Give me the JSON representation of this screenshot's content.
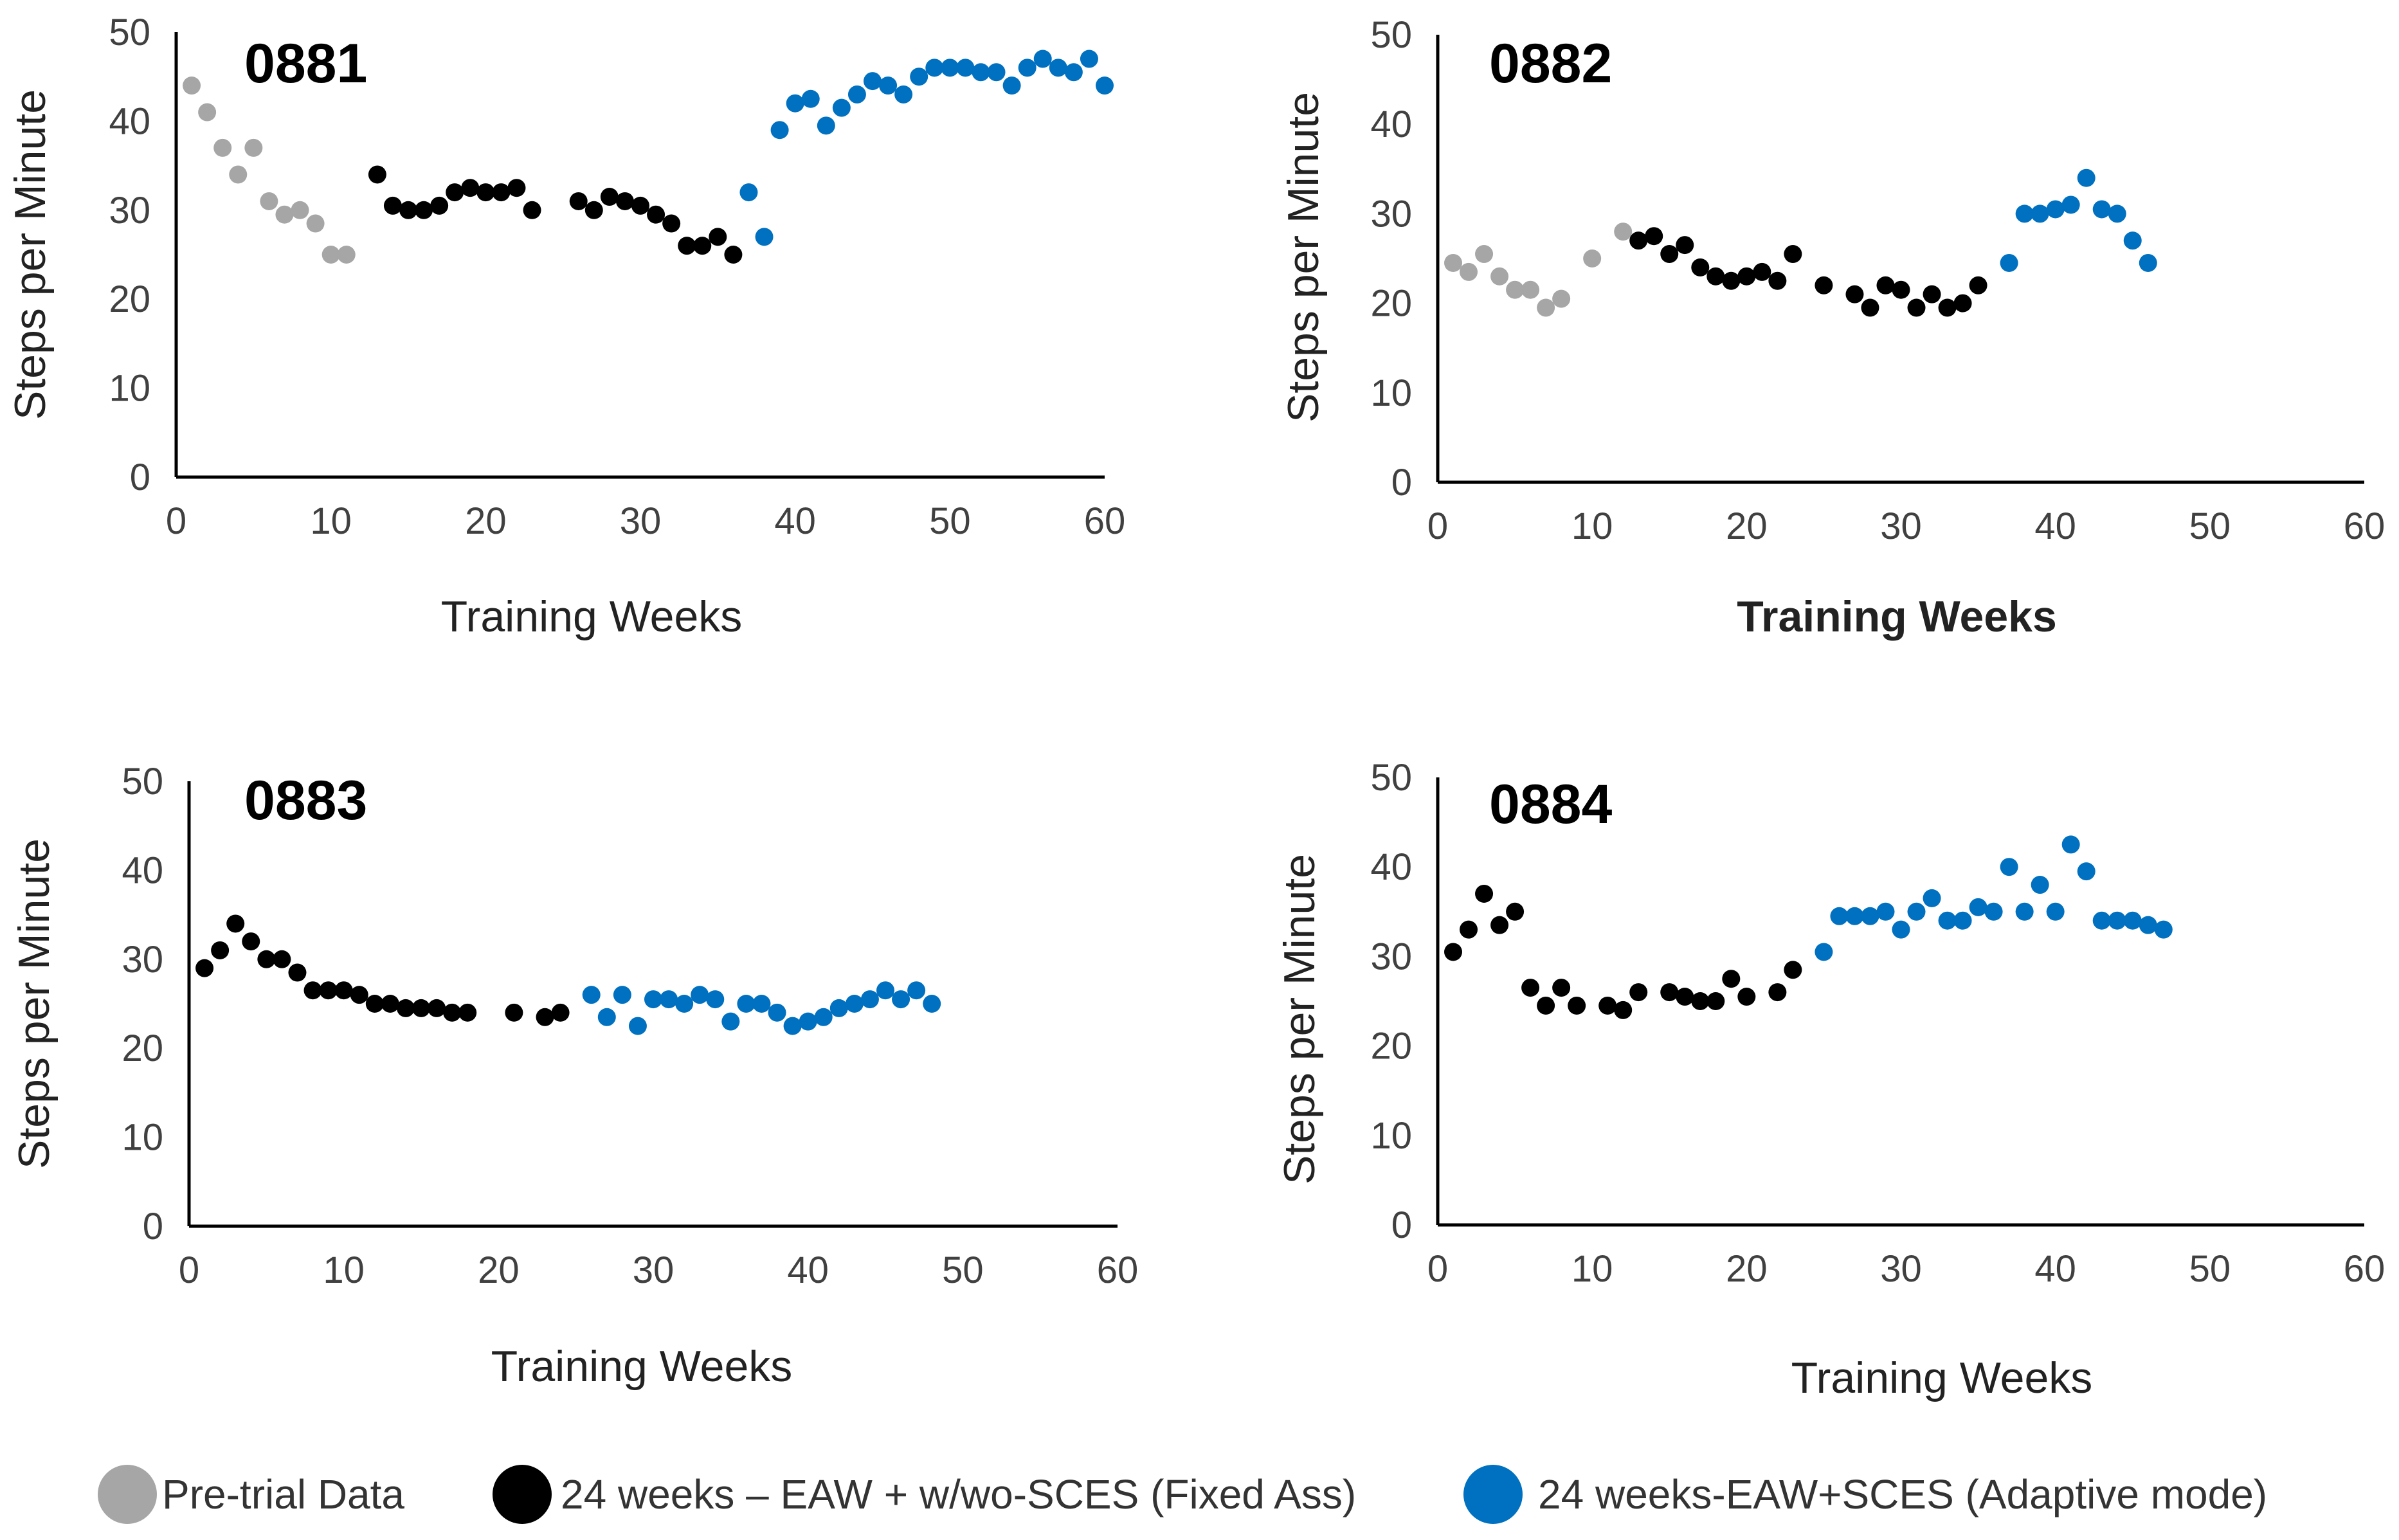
{
  "colors": {
    "pretrial": "#A6A6A6",
    "fixed": "#000000",
    "adaptive": "#0070C0",
    "axis": "#000000"
  },
  "legend": {
    "items": [
      {
        "series": "pretrial",
        "label": "Pre-trial Data"
      },
      {
        "series": "fixed",
        "label": "24 weeks – EAW + w/wo-SCES (Fixed Ass)"
      },
      {
        "series": "adaptive",
        "label": "24 weeks-EAW+SCES (Adaptive mode)"
      }
    ]
  },
  "chart_data": [
    {
      "type": "scatter",
      "title": "0881",
      "xlabel": "Training Weeks",
      "xlabel_bold": false,
      "ylabel": "Steps per Minute",
      "xlim": [
        0,
        60
      ],
      "ylim": [
        0,
        50
      ],
      "xticks": [
        0,
        10,
        20,
        30,
        40,
        50,
        60
      ],
      "yticks": [
        0,
        10,
        20,
        30,
        40,
        50
      ],
      "series": [
        {
          "name": "Pre-trial Data",
          "key": "pretrial",
          "x": [
            1,
            2,
            3,
            4,
            5,
            6,
            7,
            8,
            9,
            10,
            11
          ],
          "y": [
            44,
            41,
            37,
            34,
            37,
            31,
            29.5,
            30,
            28.5,
            25,
            25
          ]
        },
        {
          "name": "24 weeks – EAW + w/wo-SCES (Fixed Ass)",
          "key": "fixed",
          "x": [
            13,
            14,
            15,
            16,
            17,
            18,
            19,
            20,
            21,
            22,
            23,
            26,
            27,
            28,
            29,
            30,
            31,
            32,
            33,
            34,
            35,
            36
          ],
          "y": [
            34,
            30.5,
            30,
            30,
            30.5,
            32,
            32.5,
            32,
            32,
            32.5,
            30,
            31,
            30,
            31.5,
            31,
            30.5,
            29.5,
            28.5,
            26,
            26,
            27,
            25
          ]
        },
        {
          "name": "24 weeks-EAW+SCES (Adaptive mode)",
          "key": "adaptive",
          "x": [
            37,
            38,
            39,
            40,
            41,
            42,
            43,
            44,
            45,
            46,
            47,
            48,
            49,
            50,
            51,
            52,
            53,
            54,
            55,
            56,
            57,
            58,
            59,
            60
          ],
          "y": [
            32,
            27,
            39,
            42,
            42.5,
            39.5,
            41.5,
            43,
            44.5,
            44,
            43,
            45,
            46,
            46,
            46,
            45.5,
            45.5,
            44,
            46,
            47,
            46,
            45.5,
            47,
            44
          ]
        }
      ]
    },
    {
      "type": "scatter",
      "title": "0882",
      "xlabel": "Training Weeks",
      "xlabel_bold": true,
      "ylabel": "Steps per Minute",
      "xlim": [
        0,
        60
      ],
      "ylim": [
        0,
        50
      ],
      "xticks": [
        0,
        10,
        20,
        30,
        40,
        50,
        60
      ],
      "yticks": [
        0,
        10,
        20,
        30,
        40,
        50
      ],
      "series": [
        {
          "name": "Pre-trial Data",
          "key": "pretrial",
          "x": [
            1,
            2,
            3,
            4,
            5,
            6,
            7,
            8,
            10,
            12
          ],
          "y": [
            24.5,
            23.5,
            25.5,
            23,
            21.5,
            21.5,
            19.5,
            20.5,
            25,
            28
          ]
        },
        {
          "name": "24 weeks – EAW + w/wo-SCES (Fixed Ass)",
          "key": "fixed",
          "x": [
            13,
            14,
            15,
            16,
            17,
            18,
            19,
            20,
            21,
            22,
            23,
            25,
            27,
            28,
            29,
            30,
            31,
            32,
            33,
            34,
            35
          ],
          "y": [
            27,
            27.5,
            25.5,
            26.5,
            24,
            23,
            22.5,
            23,
            23.5,
            22.5,
            25.5,
            22,
            21,
            19.5,
            22,
            21.5,
            19.5,
            21,
            19.5,
            20,
            22
          ]
        },
        {
          "name": "24 weeks-EAW+SCES (Adaptive mode)",
          "key": "adaptive",
          "x": [
            37,
            38,
            39,
            40,
            41,
            42,
            43,
            44,
            45,
            46
          ],
          "y": [
            24.5,
            30,
            30,
            30.5,
            31,
            34,
            30.5,
            30,
            27,
            24.5
          ]
        }
      ]
    },
    {
      "type": "scatter",
      "title": "0883",
      "xlabel": "Training Weeks",
      "xlabel_bold": false,
      "ylabel": "Steps per Minute",
      "xlim": [
        0,
        60
      ],
      "ylim": [
        0,
        50
      ],
      "xticks": [
        0,
        10,
        20,
        30,
        40,
        50,
        60
      ],
      "yticks": [
        0,
        10,
        20,
        30,
        40,
        50
      ],
      "series": [
        {
          "name": "Pre-trial Data",
          "key": "pretrial",
          "x": [],
          "y": []
        },
        {
          "name": "24 weeks – EAW + w/wo-SCES (Fixed Ass)",
          "key": "fixed",
          "x": [
            1,
            2,
            3,
            4,
            5,
            6,
            7,
            8,
            9,
            10,
            11,
            12,
            13,
            14,
            15,
            16,
            17,
            18,
            21,
            23,
            24
          ],
          "y": [
            29,
            31,
            34,
            32,
            30,
            30,
            28.5,
            26.5,
            26.5,
            26.5,
            26,
            25,
            25,
            24.5,
            24.5,
            24.5,
            24,
            24,
            24,
            23.5,
            24
          ]
        },
        {
          "name": "24 weeks-EAW+SCES (Adaptive mode)",
          "key": "adaptive",
          "x": [
            26,
            27,
            28,
            29,
            30,
            31,
            32,
            33,
            34,
            35,
            36,
            37,
            38,
            39,
            40,
            41,
            42,
            43,
            44,
            45,
            46,
            47,
            48
          ],
          "y": [
            26,
            23.5,
            26,
            22.5,
            25.5,
            25.5,
            25,
            26,
            25.5,
            23,
            25,
            25,
            24,
            22.5,
            23,
            23.5,
            24.5,
            25,
            25.5,
            26.5,
            25.5,
            26.5,
            25
          ]
        }
      ]
    },
    {
      "type": "scatter",
      "title": "0884",
      "xlabel": "Training Weeks",
      "xlabel_bold": false,
      "ylabel": "Steps per Minute",
      "xlim": [
        0,
        60
      ],
      "ylim": [
        0,
        50
      ],
      "xticks": [
        0,
        10,
        20,
        30,
        40,
        50,
        60
      ],
      "yticks": [
        0,
        10,
        20,
        30,
        40,
        50
      ],
      "series": [
        {
          "name": "Pre-trial Data",
          "key": "pretrial",
          "x": [],
          "y": []
        },
        {
          "name": "24 weeks – EAW + w/wo-SCES (Fixed Ass)",
          "key": "fixed",
          "x": [
            1,
            2,
            3,
            4,
            5,
            6,
            7,
            8,
            9,
            11,
            12,
            13,
            15,
            16,
            17,
            18,
            19,
            20,
            22,
            23
          ],
          "y": [
            30.5,
            33,
            37,
            33.5,
            35,
            26.5,
            24.5,
            26.5,
            24.5,
            24.5,
            24,
            26,
            26,
            25.5,
            25,
            25,
            27.5,
            25.5,
            26,
            28.5
          ]
        },
        {
          "name": "24 weeks-EAW+SCES (Adaptive mode)",
          "key": "adaptive",
          "x": [
            25,
            26,
            27,
            28,
            29,
            30,
            31,
            32,
            33,
            34,
            35,
            36,
            37,
            38,
            39,
            40,
            41,
            42,
            43,
            44,
            45,
            46,
            47
          ],
          "y": [
            30.5,
            34.5,
            34.5,
            34.5,
            35,
            33,
            35,
            36.5,
            34,
            34,
            35.5,
            35,
            40,
            35,
            38,
            35,
            42.5,
            39.5,
            34,
            34,
            34,
            33.5,
            33
          ]
        }
      ]
    }
  ]
}
